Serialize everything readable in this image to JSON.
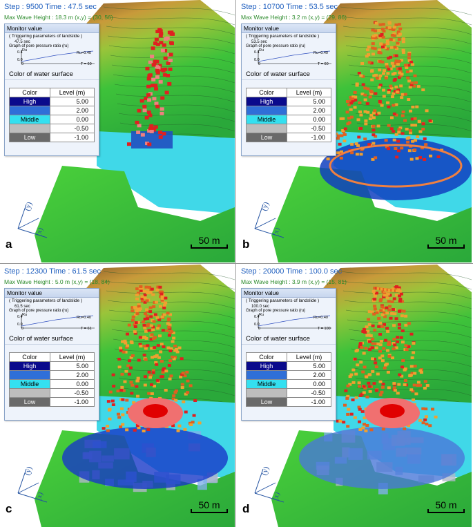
{
  "panels": [
    {
      "label": "a",
      "step": "Step : 9500  Time : 47.5 sec",
      "wave": "Max Wave Height : 18.3 m (x,y) = (30, 56)",
      "sec": "47.5 sec",
      "t_label": "T = 60",
      "stage": 1
    },
    {
      "label": "b",
      "step": "Step : 10700  Time : 53.5 sec",
      "wave": "Max Wave Height : 3.2 m (x,y) = (29, 86)",
      "sec": "53.5 sec",
      "t_label": "T = 60",
      "stage": 2
    },
    {
      "label": "c",
      "step": "Step : 12300  Time : 61.5 sec",
      "wave": "Max Wave Height : 5.0 m (x,y) = (18, 84)",
      "sec": "61.5 sec",
      "t_label": "T = 61",
      "stage": 3
    },
    {
      "label": "d",
      "step": "Step : 20000  Time : 100.0 sec",
      "wave": "Max Wave Height : 3.9 m (x,y) = (15, 81)",
      "sec": "100.0 sec",
      "t_label": "T = 100",
      "stage": 4
    }
  ],
  "monitor": {
    "title": "Monitor value",
    "trigger": "( Triggering parameters of landslide )",
    "graph_label": "Graph of pore pressure ratio (ru)",
    "ru_axis": "Ru",
    "y_top": "0.4",
    "y_mid": "0.0",
    "ru_value": "Ru=0.40",
    "origin": "0",
    "color_title": "Color of water surface",
    "table_header": [
      "Color",
      "Level (m)"
    ],
    "levels": [
      {
        "name": "High",
        "value": "5.00",
        "color": "#0a0a8c",
        "text": "#ffffff"
      },
      {
        "name": "",
        "value": "2.00",
        "color": "#2f6fd8",
        "text": "#ffffff"
      },
      {
        "name": "Middle",
        "value": "0.00",
        "color": "#34e0f0",
        "text": "#000000"
      },
      {
        "name": "",
        "value": "-0.50",
        "color": "#bdbdbd",
        "text": "#000000"
      },
      {
        "name": "Low",
        "value": "-1.00",
        "color": "#6a6a6a",
        "text": "#ffffff"
      }
    ]
  },
  "scale_label": "50 m",
  "axis_labels": {
    "x": "(x)",
    "y": "(y)"
  }
}
